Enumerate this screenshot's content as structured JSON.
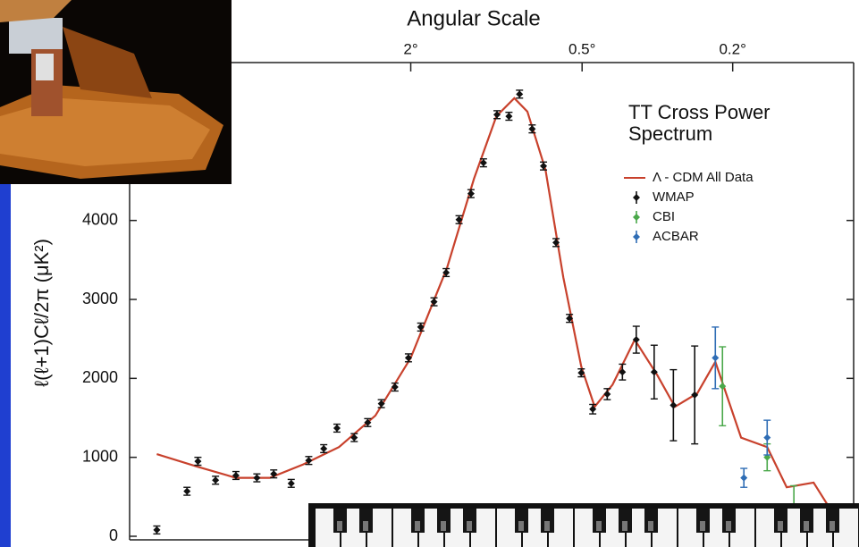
{
  "chart_data": {
    "type": "errorbar",
    "x2label": "Angular Scale",
    "ylabel": "ℓ(ℓ+1)Cℓ/2π (μK²)",
    "legend_title": "TT Cross Power Spectrum",
    "xlim": [
      1,
      1600
    ],
    "xticks": [
      {
        "value": 90,
        "label": "2°"
      },
      {
        "value": 360,
        "label": "0.5°"
      },
      {
        "value": 900,
        "label": "0.2°"
      }
    ],
    "ylim": [
      0,
      6000
    ],
    "yticks": [
      0,
      1000,
      2000,
      3000,
      4000
    ],
    "series": [
      {
        "name": "Λ - CDM All Data",
        "type": "line",
        "color": "#c8412c",
        "x": [
          2,
          5,
          10,
          17,
          27,
          42,
          63,
          90,
          126,
          159,
          191,
          220,
          243,
          278,
          316,
          358,
          392,
          441,
          508,
          584,
          649,
          739,
          818,
          942,
          1081,
          1195,
          1366,
          1522
        ],
        "values": [
          1040,
          880,
          740,
          740,
          910,
          1130,
          1530,
          2260,
          3400,
          4530,
          5320,
          5550,
          5380,
          4640,
          3280,
          2150,
          1640,
          1920,
          2490,
          2040,
          1640,
          1810,
          2210,
          1250,
          1130,
          620,
          680,
          230
        ]
      },
      {
        "name": "WMAP",
        "type": "errorbar",
        "color": "#111111",
        "x": [
          2,
          4,
          5,
          7,
          10,
          14,
          18,
          23,
          29,
          35,
          41,
          50,
          58,
          67,
          77,
          88,
          99,
          112,
          125,
          140,
          155,
          172,
          192,
          211,
          229,
          252,
          274,
          300,
          330,
          358,
          387,
          426,
          470,
          513,
          573,
          643,
          728
        ],
        "values": [
          80,
          570,
          950,
          710,
          770,
          740,
          790,
          670,
          960,
          1110,
          1370,
          1250,
          1440,
          1680,
          1890,
          2260,
          2650,
          2970,
          3340,
          4010,
          4340,
          4730,
          5340,
          5320,
          5600,
          5160,
          4690,
          3720,
          2760,
          2070,
          1610,
          1800,
          2080,
          2490,
          2080,
          1660,
          1790
        ],
        "errors": [
          50,
          50,
          50,
          50,
          50,
          50,
          50,
          50,
          50,
          50,
          50,
          50,
          50,
          50,
          50,
          50,
          50,
          50,
          50,
          50,
          50,
          50,
          50,
          50,
          50,
          50,
          50,
          50,
          50,
          50,
          60,
          70,
          100,
          170,
          340,
          450,
          620
        ]
      },
      {
        "name": "CBI",
        "type": "errorbar",
        "color": "#4aa84a",
        "x": [
          851,
          1081,
          1239
        ],
        "values": [
          1900,
          1000,
          320
        ],
        "errors": [
          500,
          170,
          320
        ]
      },
      {
        "name": "ACBAR",
        "type": "errorbar",
        "color": "#2f6db5",
        "x": [
          818,
          956,
          1081,
          1239,
          1378
        ],
        "values": [
          2260,
          740,
          1250,
          190,
          250
        ],
        "errors": [
          390,
          120,
          220,
          130,
          150
        ]
      }
    ]
  }
}
